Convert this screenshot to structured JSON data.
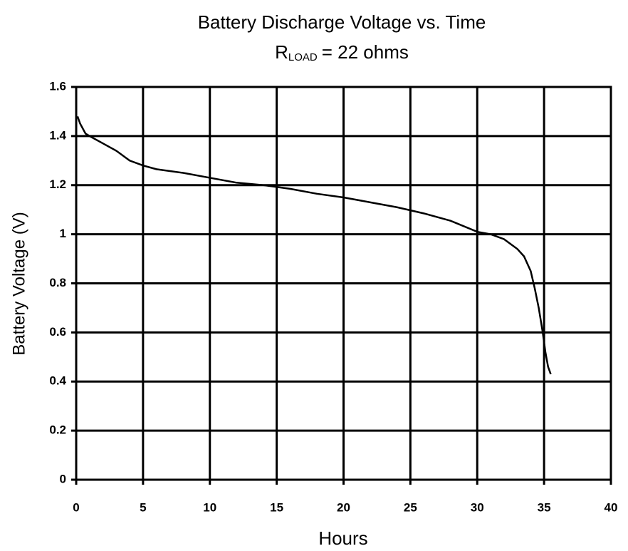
{
  "chart_data": {
    "type": "line",
    "title": "Battery Discharge Voltage vs. Time",
    "subtitle": [
      "R",
      "LOAD",
      "= 22 ohms"
    ],
    "x_label": "Hours",
    "y_label": "Battery Voltage (V)",
    "xlim": [
      0,
      40
    ],
    "xticks": [
      0,
      5,
      10,
      15,
      20,
      25,
      30,
      35,
      40
    ],
    "ylim": [
      0,
      1.6
    ],
    "yticks": [
      0,
      0.2,
      0.4,
      0.6,
      0.8,
      1,
      1.2,
      1.4,
      1.6
    ],
    "grid": true,
    "series": [
      {
        "color": "#000000",
        "x": [
          0.1,
          0.3,
          0.7,
          1,
          2,
          3,
          4,
          5,
          6,
          8,
          10,
          12,
          14,
          16,
          18,
          20,
          22,
          24,
          26,
          28,
          30,
          31,
          32,
          32.5,
          33,
          33.5,
          34,
          34.3,
          34.6,
          34.9,
          35.1,
          35.3,
          35.5
        ],
        "values": [
          1.48,
          1.45,
          1.41,
          1.4,
          1.37,
          1.34,
          1.3,
          1.28,
          1.265,
          1.25,
          1.23,
          1.21,
          1.2,
          1.185,
          1.165,
          1.15,
          1.13,
          1.11,
          1.085,
          1.055,
          1.01,
          1.0,
          0.98,
          0.96,
          0.94,
          0.91,
          0.85,
          0.78,
          0.7,
          0.6,
          0.52,
          0.46,
          0.43
        ]
      }
    ]
  }
}
